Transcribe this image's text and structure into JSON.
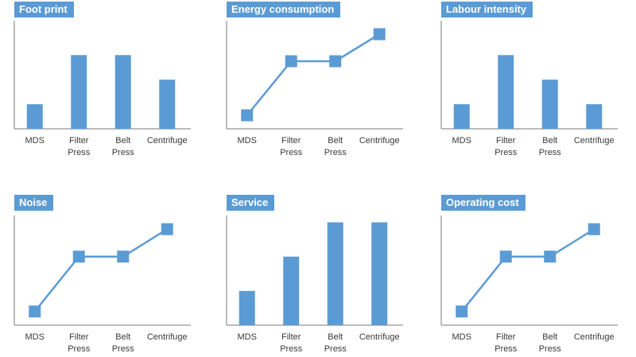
{
  "theme": {
    "accent": "#5b9bd5",
    "axis": "#a6a6a6"
  },
  "chart_data": [
    {
      "type": "bar",
      "title": "Foot print",
      "categories": [
        "MDS",
        "Filter Press",
        "Belt Press",
        "Centrifuge"
      ],
      "values": [
        1,
        3,
        3,
        2
      ],
      "ylim": [
        0,
        4.4
      ]
    },
    {
      "type": "line",
      "title": "Energy consumption",
      "categories": [
        "MDS",
        "Filter Press",
        "Belt Press",
        "Centrifuge"
      ],
      "values": [
        1,
        3,
        3,
        4
      ],
      "ylim": [
        0.5,
        4.5
      ]
    },
    {
      "type": "bar",
      "title": "Labour intensity",
      "categories": [
        "MDS",
        "Filter Press",
        "Belt Press",
        "Centrifuge"
      ],
      "values": [
        1,
        3,
        2,
        1
      ],
      "ylim": [
        0,
        4.4
      ]
    },
    {
      "type": "line",
      "title": "Noise",
      "categories": [
        "MDS",
        "Filter Press",
        "Belt Press",
        "Centrifuge"
      ],
      "values": [
        1,
        3,
        3,
        4
      ],
      "ylim": [
        0.5,
        4.5
      ]
    },
    {
      "type": "bar",
      "title": "Service",
      "categories": [
        "MDS",
        "Filter Press",
        "Belt Press",
        "Centrifuge"
      ],
      "values": [
        1,
        2,
        3,
        3
      ],
      "ylim": [
        0,
        3.2
      ]
    },
    {
      "type": "line",
      "title": "Operating cost",
      "categories": [
        "MDS",
        "Filter Press",
        "Belt Press",
        "Centrifuge"
      ],
      "values": [
        1,
        3,
        3,
        4
      ],
      "ylim": [
        0.5,
        4.5
      ]
    }
  ]
}
